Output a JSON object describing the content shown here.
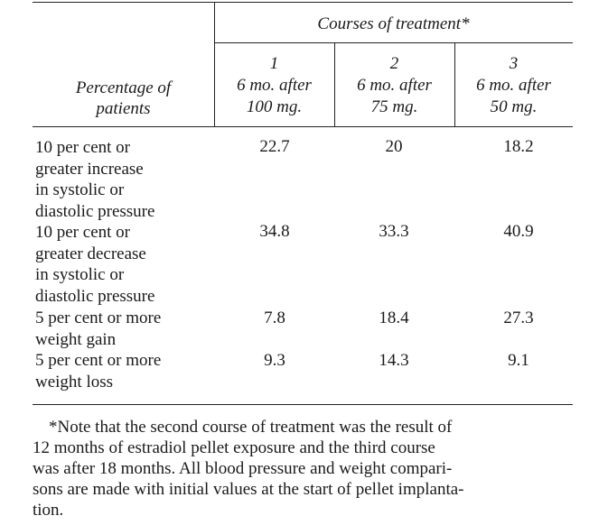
{
  "table": {
    "spanner_header": "Courses of treatment*",
    "stub_header": [
      "Percentage of",
      "patients"
    ],
    "columns": [
      {
        "number": "1",
        "line1": "6 mo. after",
        "line2": "100 mg."
      },
      {
        "number": "2",
        "line1": "6 mo. after",
        "line2": "75 mg."
      },
      {
        "number": "3",
        "line1": "6 mo. after",
        "line2": "50 mg."
      }
    ],
    "rows": [
      {
        "label_lines": [
          "10 per cent or",
          "greater increase",
          "in systolic or",
          "diastolic pressure"
        ],
        "values": [
          "22.7",
          "20",
          "18.2"
        ]
      },
      {
        "label_lines": [
          "10 per cent or",
          "greater decrease",
          "in  systolic or",
          "diastolic pressure"
        ],
        "values": [
          "34.8",
          "33.3",
          "40.9"
        ]
      },
      {
        "label_lines": [
          "5 per cent or more",
          "weight gain"
        ],
        "values": [
          "7.8",
          "18.4",
          "27.3"
        ]
      },
      {
        "label_lines": [
          "5 per cent or more",
          "weight loss"
        ],
        "values": [
          "9.3",
          "14.3",
          "9.1"
        ]
      }
    ]
  },
  "footnote_lines": [
    "*Note that the second course of treatment was the result of",
    "12 months of estradiol pellet exposure and the third course",
    "was after 18 months. All blood pressure and weight compari-",
    "sons are made with initial values at the start of pellet implanta-",
    "tion."
  ]
}
